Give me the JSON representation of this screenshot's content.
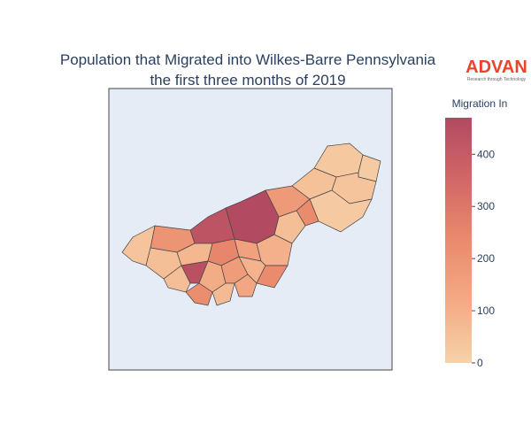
{
  "chart_data": {
    "type": "choropleth",
    "title": "Population that Migrated into Wilkes-Barre Pennsylvania",
    "subtitle": "the first three months of 2019",
    "logo": "ADVAN",
    "logo_tagline": "Research through Technology",
    "colorbar_title": "Migration In",
    "values": [
      30,
      20,
      40,
      50,
      25,
      180,
      230,
      60,
      470,
      430,
      200,
      40,
      60,
      80,
      250,
      150,
      100,
      60,
      440,
      110,
      170,
      90,
      230,
      220,
      70,
      130
    ],
    "zlim": [
      0,
      470
    ],
    "zticks": [
      0,
      100,
      200,
      300,
      400
    ],
    "colorscale": [
      "#f6d2a9",
      "#f3aa84",
      "#ea8a6d",
      "#d16767",
      "#b24a62"
    ]
  }
}
